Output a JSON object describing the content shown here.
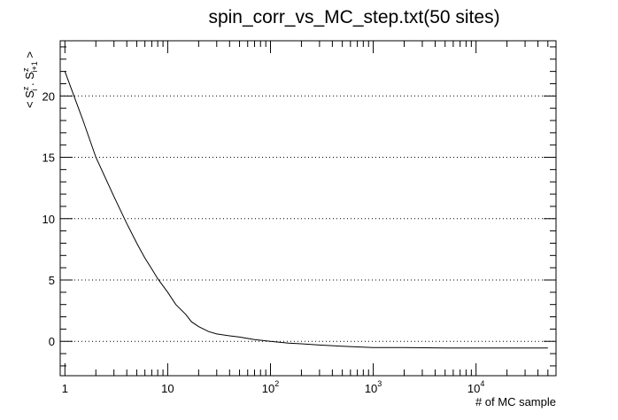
{
  "chart_data": {
    "type": "line",
    "title": "spin_corr_vs_MC_step.txt(50 sites)",
    "xlabel": "# of MC sample",
    "ylabel": "< S_i^z . S_{i+1}^z >",
    "x_scale": "log",
    "xlim": [
      0.9,
      60000
    ],
    "ylim": [
      -2.8,
      24.5
    ],
    "grid": {
      "x": false,
      "y": true
    },
    "x_ticks": [
      {
        "value": 1,
        "base": "1",
        "exp": ""
      },
      {
        "value": 10,
        "base": "10",
        "exp": ""
      },
      {
        "value": 100,
        "base": "10",
        "exp": "2"
      },
      {
        "value": 1000,
        "base": "10",
        "exp": "3"
      },
      {
        "value": 10000,
        "base": "10",
        "exp": "4"
      }
    ],
    "y_ticks": [
      0,
      5,
      10,
      15,
      20
    ],
    "series": [
      {
        "color": "#000000",
        "x": [
          1,
          1.5,
          2,
          3,
          4,
          5,
          6,
          7,
          8,
          10,
          12,
          15,
          17,
          20,
          25,
          30,
          40,
          50,
          70,
          100,
          150,
          200,
          300,
          500,
          700,
          1000,
          2000,
          5000,
          10000,
          20000,
          50000
        ],
        "y": [
          22.0,
          18.0,
          15.0,
          11.8,
          9.6,
          8.0,
          6.8,
          5.9,
          5.1,
          4.0,
          3.0,
          2.2,
          1.6,
          1.2,
          0.8,
          0.6,
          0.45,
          0.35,
          0.15,
          0.0,
          -0.15,
          -0.2,
          -0.3,
          -0.4,
          -0.45,
          -0.5,
          -0.5,
          -0.55,
          -0.55,
          -0.55,
          -0.55
        ]
      }
    ]
  }
}
